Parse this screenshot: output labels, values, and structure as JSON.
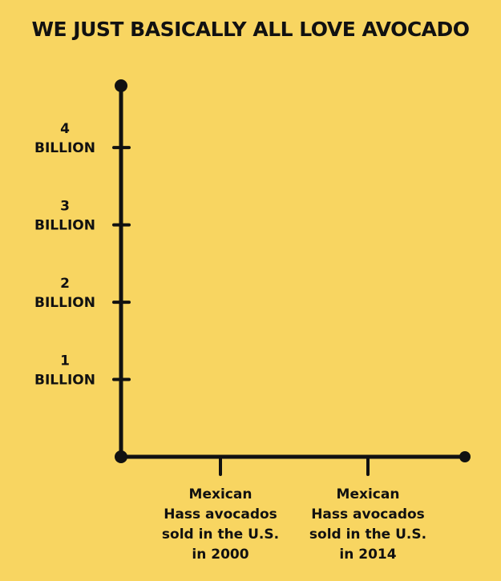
{
  "chart_data": {
    "type": "bar",
    "title": "WE JUST BASICALLY ALL LOVE AVOCADO",
    "xlabel": "",
    "ylabel": "",
    "ylim": [
      0,
      4.8
    ],
    "y_ticks": [
      {
        "value": 1,
        "lines": [
          "1",
          "BILLION"
        ]
      },
      {
        "value": 2,
        "lines": [
          "2",
          "BILLION"
        ]
      },
      {
        "value": 3,
        "lines": [
          "3",
          "BILLION"
        ]
      },
      {
        "value": 4,
        "lines": [
          "4",
          "BILLION"
        ]
      }
    ],
    "categories": [
      {
        "lines": [
          "Mexican",
          "Hass avocados",
          "sold in the U.S.",
          "in 2000"
        ]
      },
      {
        "lines": [
          "Mexican",
          "Hass avocados",
          "sold in the U.S.",
          "in 2014"
        ]
      }
    ],
    "values": [
      null,
      null
    ],
    "colors": {
      "background": "#f8d561",
      "ink": "#111111"
    }
  }
}
